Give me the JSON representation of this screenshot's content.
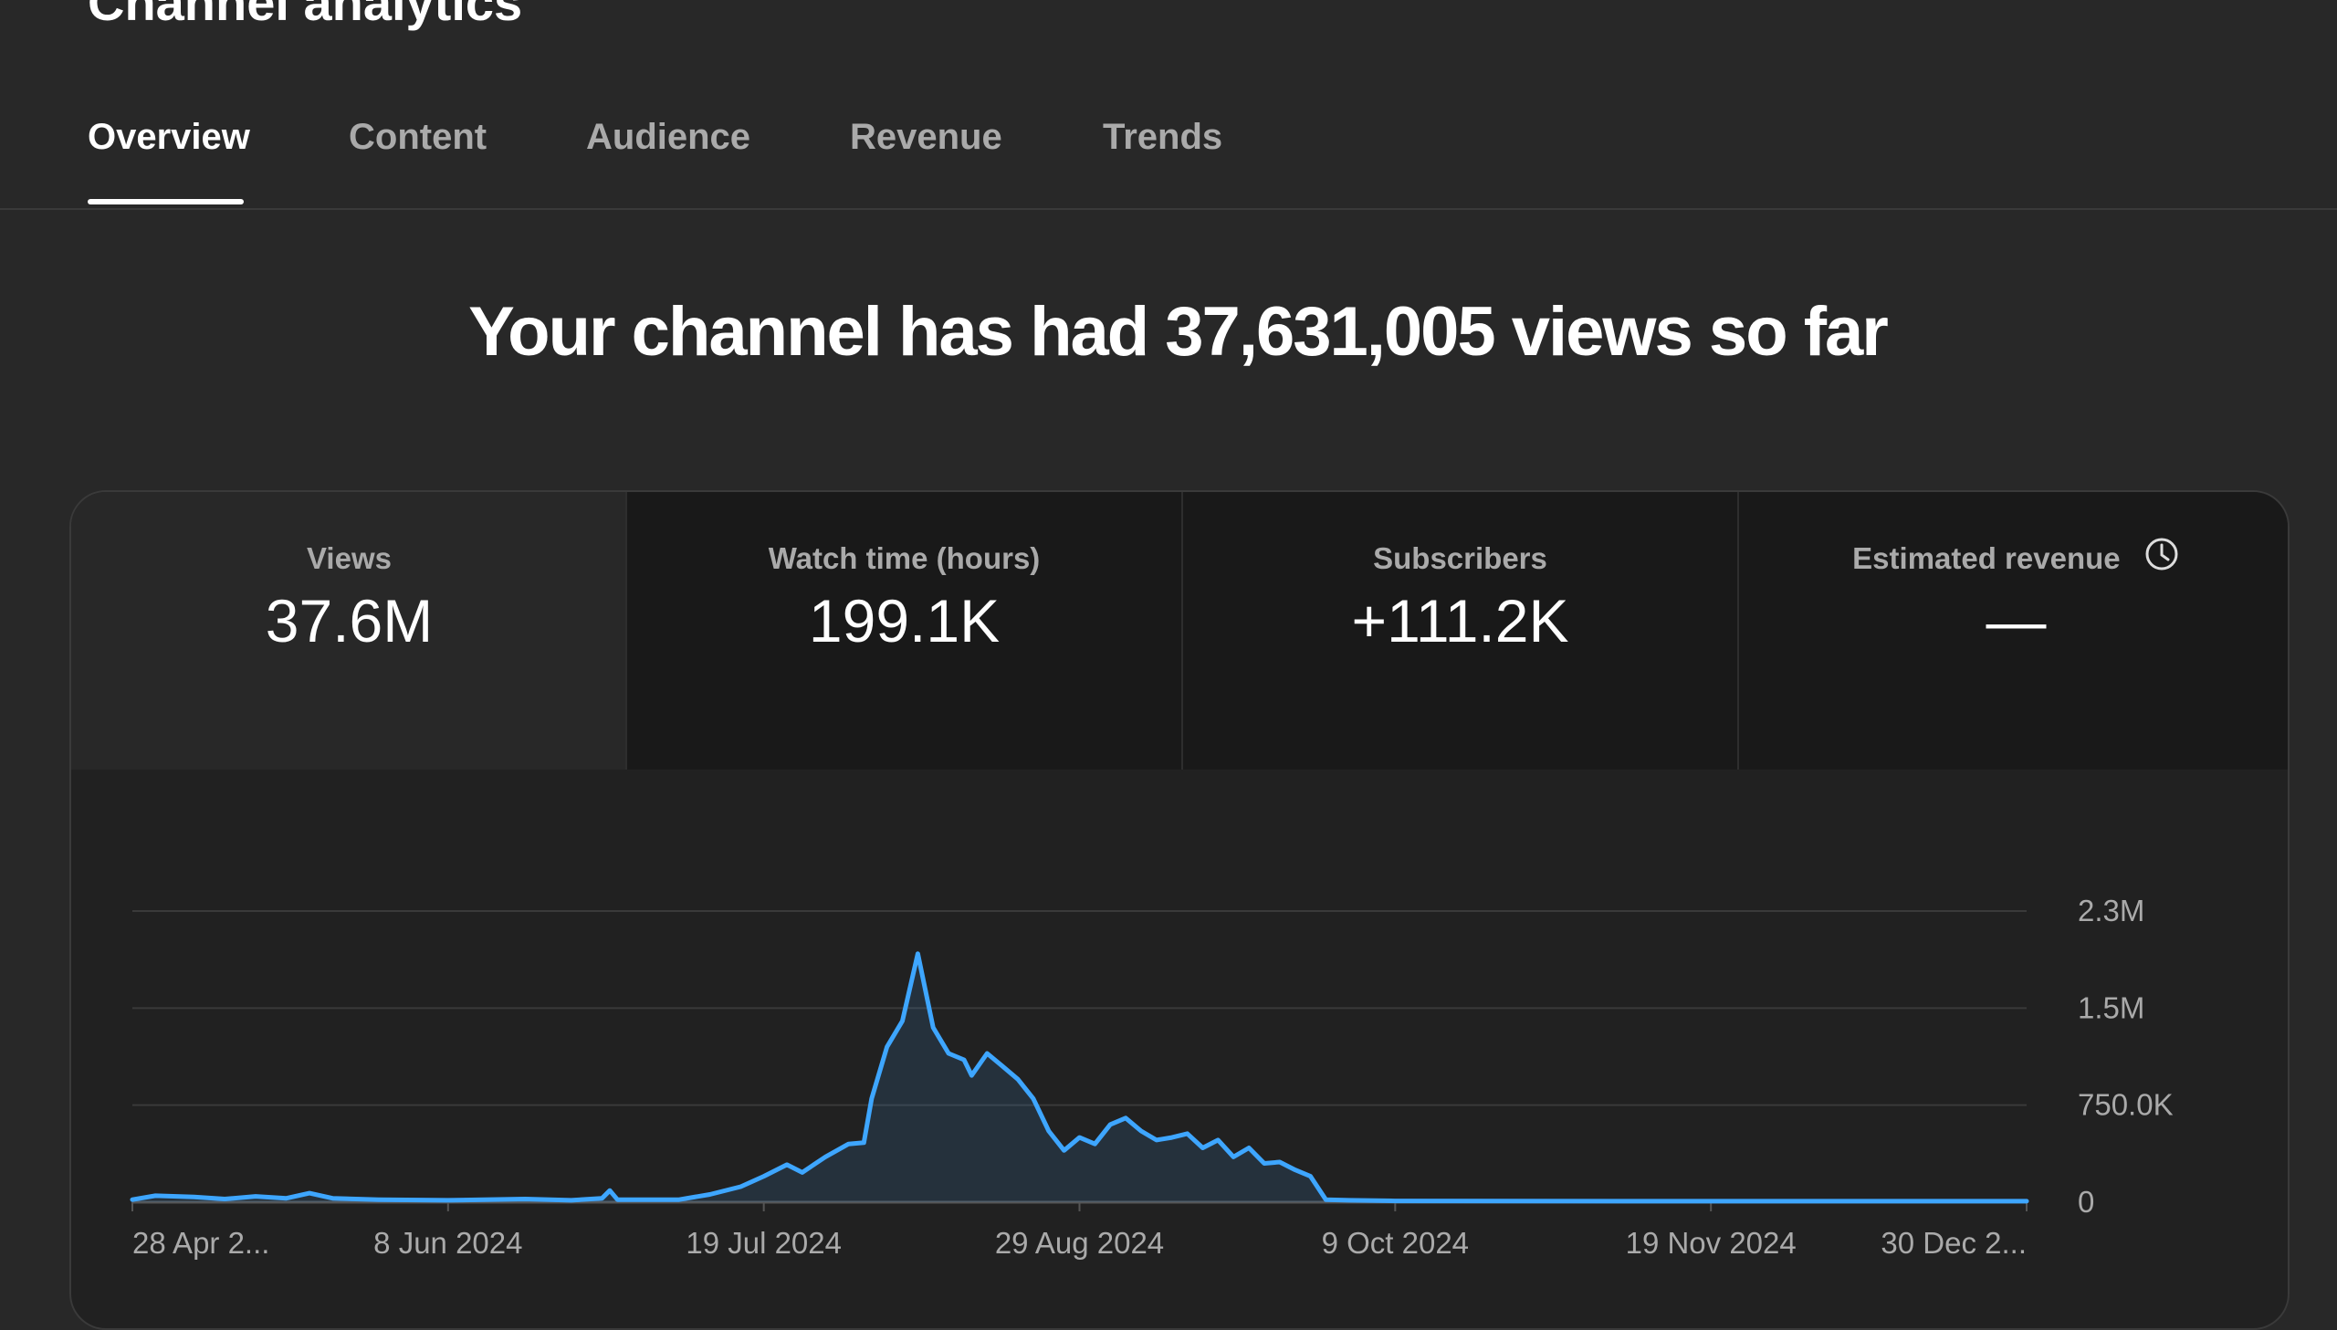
{
  "page": {
    "title": "Channel analytics"
  },
  "tabs": [
    {
      "label": "Overview",
      "active": true
    },
    {
      "label": "Content",
      "active": false
    },
    {
      "label": "Audience",
      "active": false
    },
    {
      "label": "Revenue",
      "active": false
    },
    {
      "label": "Trends",
      "active": false
    }
  ],
  "headline": "Your channel has had 37,631,005 views so far",
  "metrics": [
    {
      "label": "Views",
      "value": "37.6M"
    },
    {
      "label": "Watch time (hours)",
      "value": "199.1K"
    },
    {
      "label": "Subscribers",
      "value": "+111.2K"
    },
    {
      "label": "Estimated revenue",
      "value": "—",
      "icon": "clock-icon"
    }
  ],
  "colors": {
    "line": "#3ea6ff",
    "background": "#282828",
    "card": "#212121"
  },
  "chart_data": {
    "type": "area",
    "y_tick_labels": [
      "2.3M",
      "1.5M",
      "750.0K",
      "0"
    ],
    "y_ticks": [
      2250000,
      1500000,
      750000,
      0
    ],
    "ylim": [
      0,
      2250000
    ],
    "x_tick_labels": [
      "28 Apr 2...",
      "8 Jun 2024",
      "19 Jul 2024",
      "29 Aug 2024",
      "9 Oct 2024",
      "19 Nov 2024",
      "30 Dec 2..."
    ],
    "x_tick_dates": [
      "2024-04-28",
      "2024-06-08",
      "2024-07-19",
      "2024-08-29",
      "2024-10-09",
      "2024-11-19",
      "2024-12-30"
    ],
    "xlim": [
      "2024-04-28",
      "2024-12-30"
    ],
    "grid": true,
    "series": [
      {
        "points": [
          [
            "2024-04-28",
            20000
          ],
          [
            "2024-05-01",
            50000
          ],
          [
            "2024-05-06",
            40000
          ],
          [
            "2024-05-10",
            25000
          ],
          [
            "2024-05-14",
            45000
          ],
          [
            "2024-05-18",
            30000
          ],
          [
            "2024-05-21",
            70000
          ],
          [
            "2024-05-24",
            30000
          ],
          [
            "2024-05-30",
            20000
          ],
          [
            "2024-06-08",
            15000
          ],
          [
            "2024-06-18",
            25000
          ],
          [
            "2024-06-24",
            15000
          ],
          [
            "2024-06-28",
            30000
          ],
          [
            "2024-06-29",
            90000
          ],
          [
            "2024-06-30",
            20000
          ],
          [
            "2024-07-08",
            20000
          ],
          [
            "2024-07-12",
            60000
          ],
          [
            "2024-07-16",
            120000
          ],
          [
            "2024-07-19",
            200000
          ],
          [
            "2024-07-22",
            290000
          ],
          [
            "2024-07-24",
            230000
          ],
          [
            "2024-07-27",
            350000
          ],
          [
            "2024-07-30",
            450000
          ],
          [
            "2024-08-01",
            460000
          ],
          [
            "2024-08-02",
            800000
          ],
          [
            "2024-08-04",
            1200000
          ],
          [
            "2024-08-06",
            1400000
          ],
          [
            "2024-08-08",
            1920000
          ],
          [
            "2024-08-10",
            1350000
          ],
          [
            "2024-08-12",
            1150000
          ],
          [
            "2024-08-14",
            1100000
          ],
          [
            "2024-08-15",
            980000
          ],
          [
            "2024-08-17",
            1150000
          ],
          [
            "2024-08-19",
            1050000
          ],
          [
            "2024-08-21",
            950000
          ],
          [
            "2024-08-23",
            800000
          ],
          [
            "2024-08-25",
            550000
          ],
          [
            "2024-08-27",
            400000
          ],
          [
            "2024-08-29",
            500000
          ],
          [
            "2024-08-31",
            450000
          ],
          [
            "2024-09-02",
            600000
          ],
          [
            "2024-09-04",
            650000
          ],
          [
            "2024-09-06",
            550000
          ],
          [
            "2024-09-08",
            480000
          ],
          [
            "2024-09-10",
            500000
          ],
          [
            "2024-09-12",
            530000
          ],
          [
            "2024-09-14",
            420000
          ],
          [
            "2024-09-16",
            480000
          ],
          [
            "2024-09-18",
            350000
          ],
          [
            "2024-09-20",
            420000
          ],
          [
            "2024-09-22",
            300000
          ],
          [
            "2024-09-24",
            310000
          ],
          [
            "2024-09-26",
            250000
          ],
          [
            "2024-09-28",
            200000
          ],
          [
            "2024-09-30",
            20000
          ],
          [
            "2024-10-03",
            15000
          ],
          [
            "2024-10-09",
            10000
          ],
          [
            "2024-11-19",
            8000
          ],
          [
            "2024-12-30",
            8000
          ]
        ]
      }
    ]
  }
}
